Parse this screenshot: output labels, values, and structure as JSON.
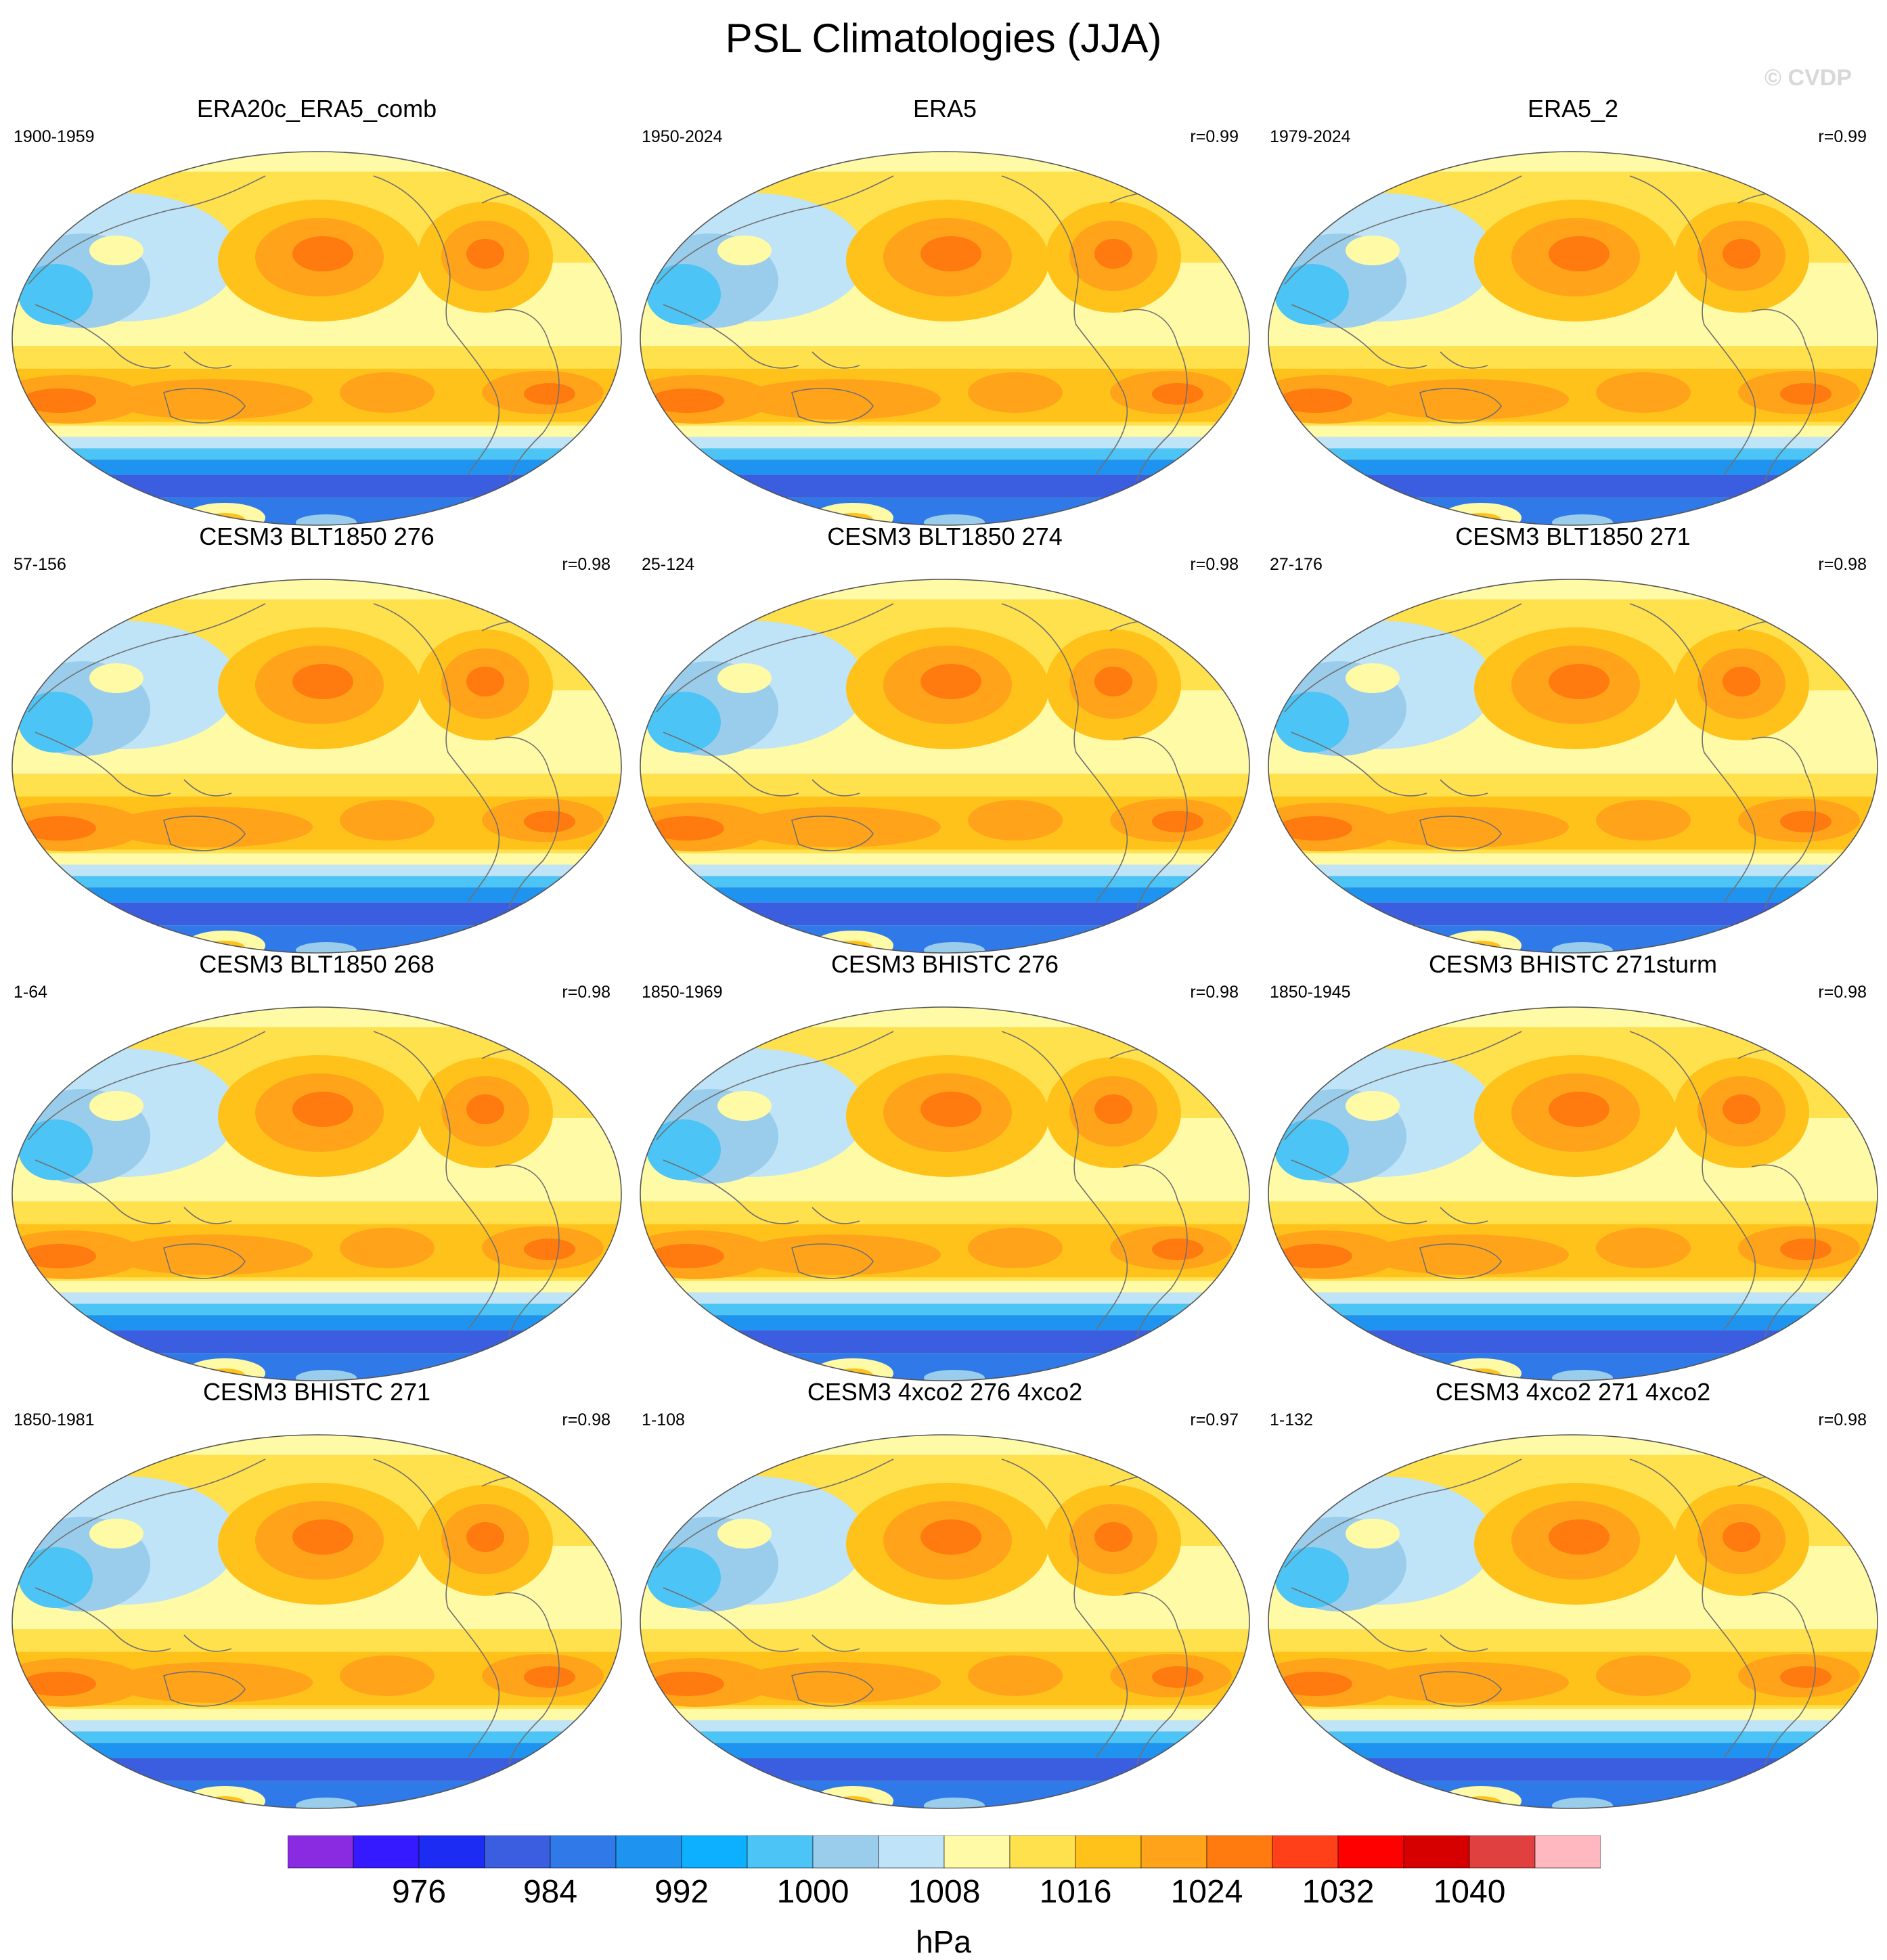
{
  "title": "PSL Climatologies (JJA)",
  "watermark": "© CVDP",
  "units": "hPa",
  "colors": {
    "levels": [
      "#8a2be2",
      "#3519ff",
      "#1d2cf2",
      "#3b5ee0",
      "#2f7ae8",
      "#1f93f0",
      "#0db0ff",
      "#4cc4f5",
      "#99cdeb",
      "#bfe3f7",
      "#fffaa6",
      "#ffe04d",
      "#ffc21a",
      "#ffa41a",
      "#ff7a0f",
      "#ff4019",
      "#ff0000",
      "#d60000",
      "#e04040",
      "#ffb8c0"
    ],
    "coast": "#707070",
    "globe_edge": "#555555"
  },
  "chart_data": {
    "type": "heatmap",
    "title": "PSL Climatologies (JJA)",
    "projection": "global map, Pacific-centered",
    "colorbar": {
      "tick_labels": [
        "976",
        "984",
        "992",
        "1000",
        "1008",
        "1016",
        "1024",
        "1032",
        "1040"
      ],
      "units": "hPa",
      "n_bins": 20
    },
    "panels": [
      {
        "name": "ERA20c_ERA5_comb",
        "period": "1900-1959",
        "r": ""
      },
      {
        "name": "ERA5",
        "period": "1950-2024",
        "r": "r=0.99"
      },
      {
        "name": "ERA5_2",
        "period": "1979-2024",
        "r": "r=0.99"
      },
      {
        "name": "CESM3 BLT1850 276",
        "period": "57-156",
        "r": "r=0.98"
      },
      {
        "name": "CESM3 BLT1850 274",
        "period": "25-124",
        "r": "r=0.98"
      },
      {
        "name": "CESM3 BLT1850 271",
        "period": "27-176",
        "r": "r=0.98"
      },
      {
        "name": "CESM3 BLT1850 268",
        "period": "1-64",
        "r": "r=0.98"
      },
      {
        "name": "CESM3 BHISTC 276",
        "period": "1850-1969",
        "r": "r=0.98"
      },
      {
        "name": "CESM3 BHISTC 271sturm",
        "period": "1850-1945",
        "r": "r=0.98"
      },
      {
        "name": "CESM3 BHISTC 271",
        "period": "1850-1981",
        "r": "r=0.98"
      },
      {
        "name": "CESM3 4xco2 276 4xco2",
        "period": "1-108",
        "r": "r=0.97"
      },
      {
        "name": "CESM3 4xco2 271 4xco2",
        "period": "1-132",
        "r": "r=0.98"
      }
    ]
  }
}
